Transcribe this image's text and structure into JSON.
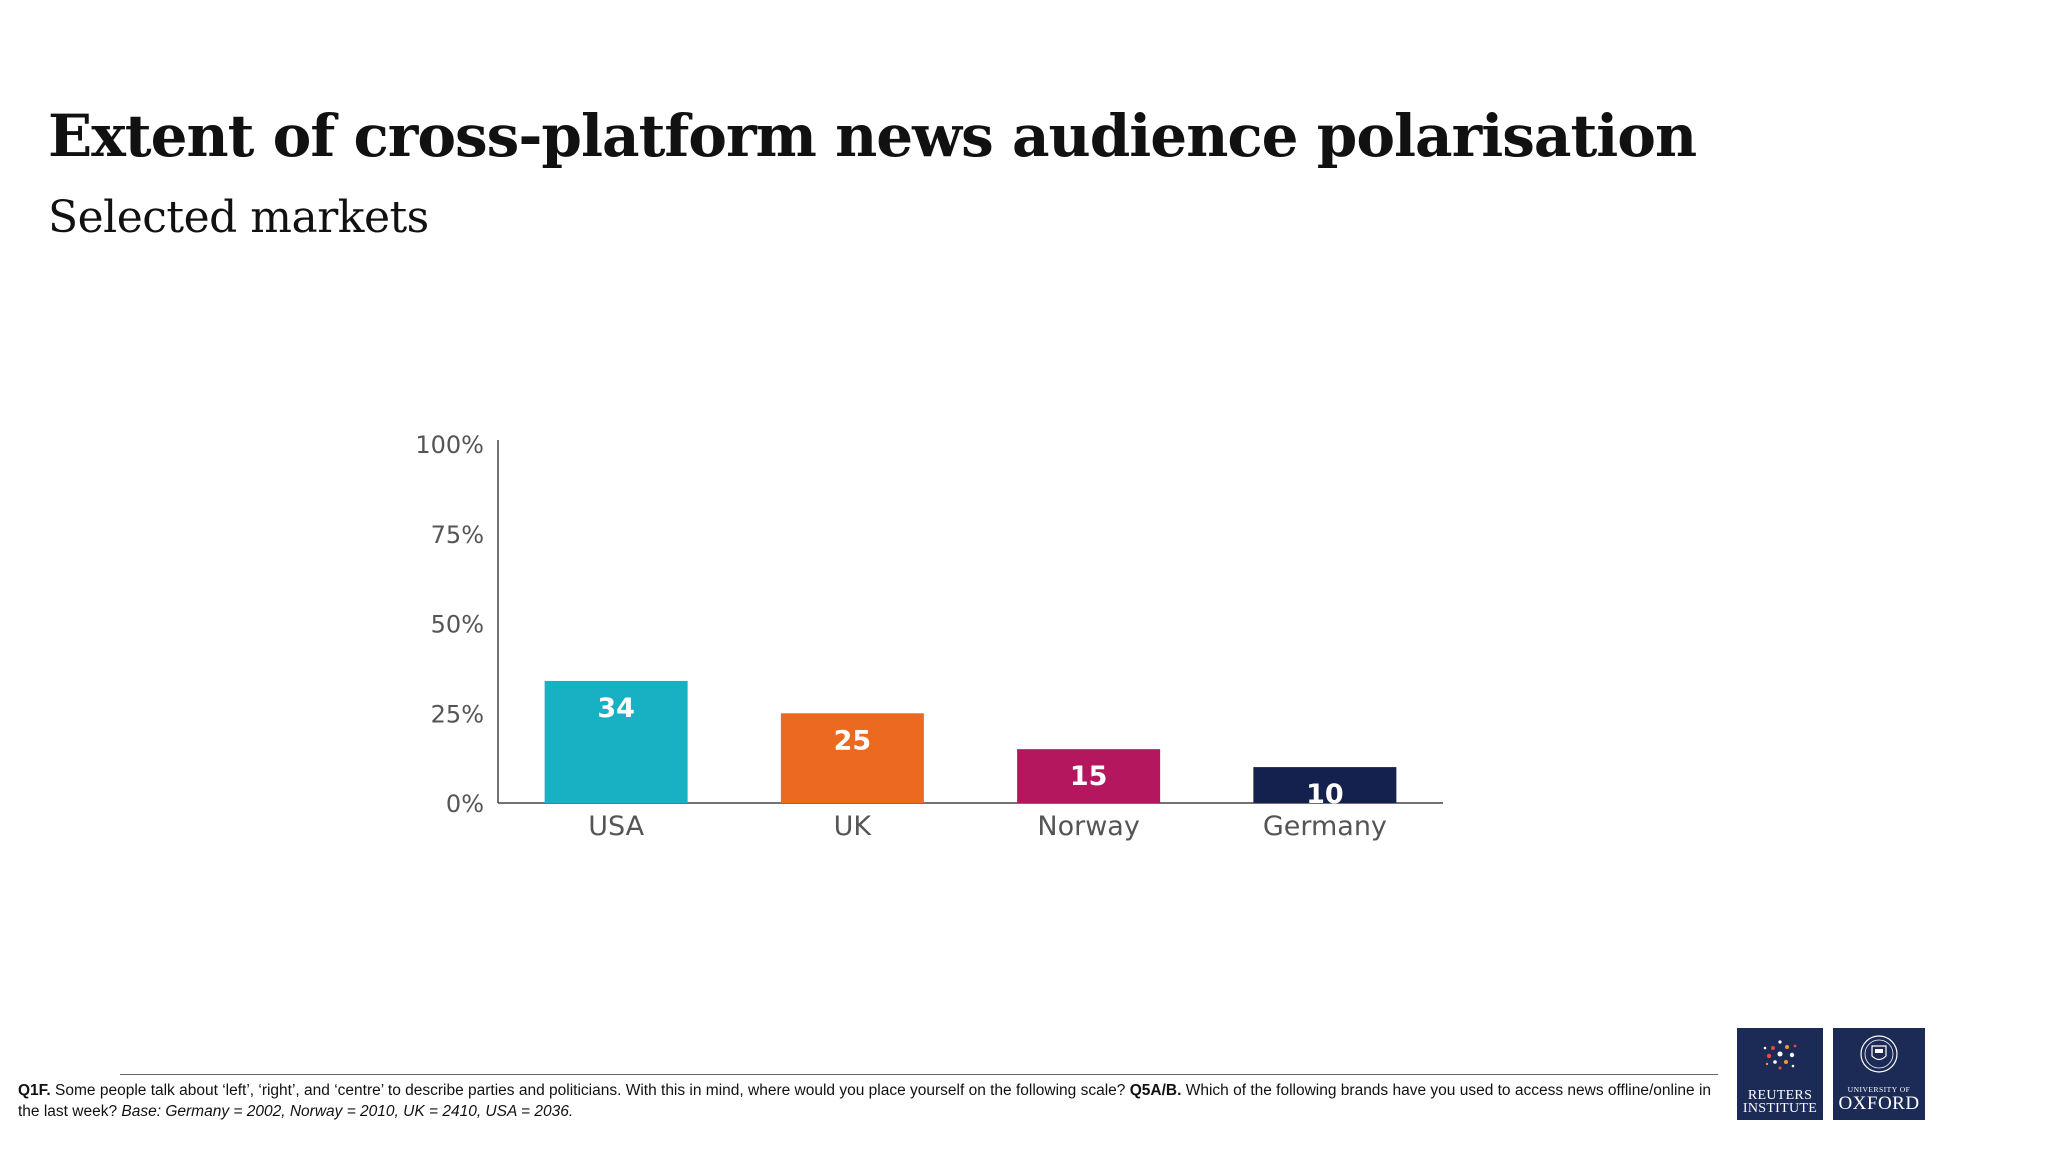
{
  "title": "Extent of cross-platform news audience polarisation",
  "subtitle": "Selected markets",
  "chart_data": {
    "type": "bar",
    "categories": [
      "USA",
      "UK",
      "Norway",
      "Germany"
    ],
    "values": [
      34,
      25,
      15,
      10
    ],
    "data_labels": [
      "34",
      "25",
      "15",
      "10"
    ],
    "colors": [
      "#18b1c4",
      "#ec6a1f",
      "#b5175f",
      "#14214f"
    ],
    "ylim": [
      0,
      100
    ],
    "yticks": [
      0,
      25,
      50,
      75,
      100
    ],
    "ytick_labels": [
      "0%",
      "25%",
      "50%",
      "75%",
      "100%"
    ],
    "grid": false,
    "legend": "none"
  },
  "footnote": {
    "q1_label": "Q1F.",
    "q1_text": " Some people talk about ‘left’, ‘right’, and ‘centre’ to describe parties and politicians. With this in mind, where would you place yourself on the following scale? ",
    "q5_label": "Q5A/B.",
    "q5_text": " Which of the following brands have you used to access news offline/online in the last week? ",
    "base_text": "Base: Germany = 2002, Norway = 2010, UK = 2410, USA = 2036."
  },
  "logos": {
    "reuters_line1": "REUTERS",
    "reuters_line2": "INSTITUTE",
    "oxford_small": "UNIVERSITY OF",
    "oxford_big": "OXFORD"
  }
}
